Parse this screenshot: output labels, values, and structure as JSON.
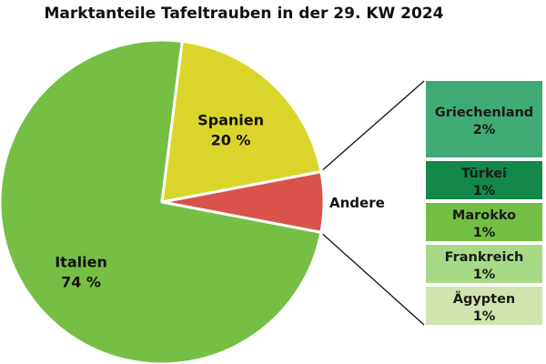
{
  "chart_data": {
    "type": "pie",
    "title": "Marktanteile Tafeltrauben in der 29. KW 2024",
    "slices": [
      {
        "name": "Italien",
        "value": 74,
        "label": "74 %",
        "color": "#76bf45"
      },
      {
        "name": "Spanien",
        "value": 20,
        "label": "20 %",
        "color": "#dad52a"
      },
      {
        "name": "Andere",
        "value": 6,
        "label": "",
        "color": "#d9534a"
      }
    ],
    "breakdown": {
      "parent": "Andere",
      "type": "stacked-bar",
      "items": [
        {
          "name": "Griechenland",
          "value": 2,
          "label": "2%",
          "color": "#3faa73"
        },
        {
          "name": "Türkei",
          "value": 1,
          "label": "1%",
          "color": "#14874a"
        },
        {
          "name": "Marokko",
          "value": 1,
          "label": "1%",
          "color": "#73bf44"
        },
        {
          "name": "Frankreich",
          "value": 1,
          "label": "1%",
          "color": "#a6da87"
        },
        {
          "name": "Ägypten",
          "value": 1,
          "label": "1%",
          "color": "#d2e4ae"
        }
      ]
    }
  }
}
